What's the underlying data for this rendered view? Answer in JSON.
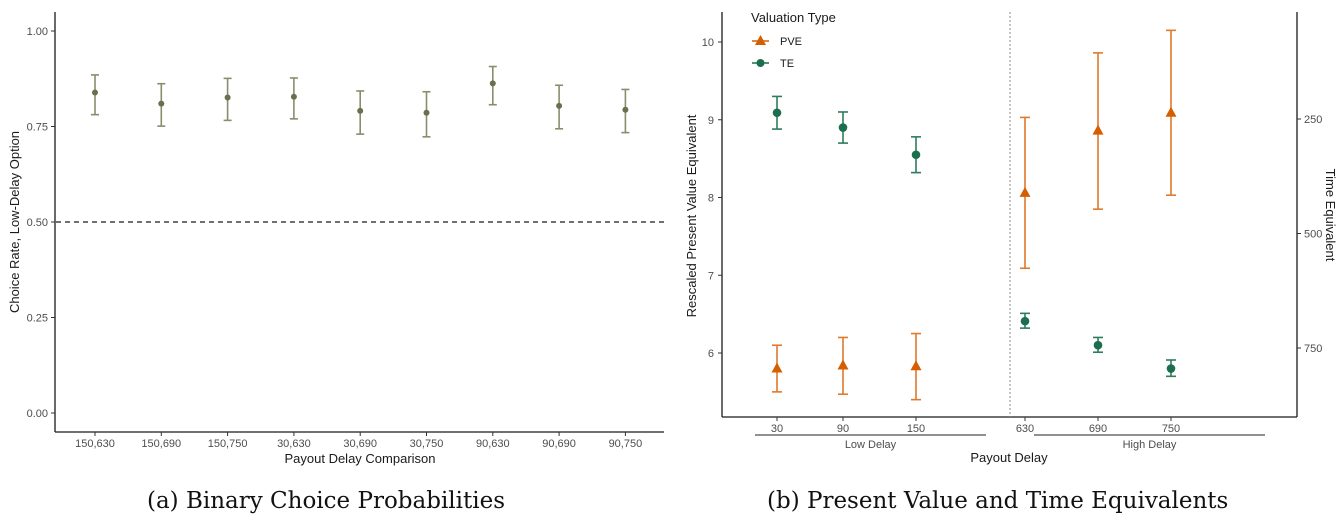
{
  "captions": {
    "a": "(a) Binary Choice Probabilities",
    "b": "(b) Present Value and Time Equivalents"
  },
  "chart_data": [
    {
      "type": "scatter",
      "title": "(a) Binary Choice Probabilities",
      "xlabel": "Payout Delay Comparison",
      "ylabel": "Choice Rate, Low-Delay Option",
      "ylim": [
        -0.05,
        1.05
      ],
      "yticks": [
        0.0,
        0.25,
        0.5,
        0.75,
        1.0
      ],
      "ytick_labels": [
        "0.00",
        "0.25",
        "0.50",
        "0.75",
        "1.00"
      ],
      "categories": [
        "150,630",
        "150,690",
        "150,750",
        "30,630",
        "30,690",
        "30,750",
        "90,630",
        "90,690",
        "90,750"
      ],
      "values": [
        0.839,
        0.81,
        0.826,
        0.828,
        0.791,
        0.786,
        0.863,
        0.804,
        0.794
      ],
      "lower": [
        0.781,
        0.751,
        0.766,
        0.77,
        0.73,
        0.723,
        0.807,
        0.744,
        0.734
      ],
      "upper": [
        0.885,
        0.862,
        0.876,
        0.877,
        0.843,
        0.841,
        0.907,
        0.858,
        0.847
      ],
      "reference_line": {
        "y": 0.5,
        "style": "dashed"
      },
      "color": "#6b6f4e",
      "grid": false
    },
    {
      "type": "scatter",
      "title": "(b) Present Value and Time Equivalents",
      "xlabel": "Payout Delay",
      "ylabel": "Rescaled Present Value Equivalent",
      "ylabel_right": "Time Equivalent",
      "ylim": [
        5.2,
        10.4
      ],
      "yticks": [
        6,
        7,
        8,
        9,
        10
      ],
      "ytick_labels": [
        "6",
        "7",
        "8",
        "9",
        "10"
      ],
      "right_axis": {
        "ticks": [
          250,
          500,
          750
        ],
        "tick_labels": [
          "250",
          "500",
          "750"
        ],
        "reversed": true
      },
      "categories": [
        "30",
        "90",
        "150",
        "630",
        "690",
        "750"
      ],
      "groups": [
        {
          "label": "Low Delay",
          "categories": [
            "30",
            "90",
            "150"
          ]
        },
        {
          "label": "High Delay",
          "categories": [
            "630",
            "690",
            "750"
          ]
        }
      ],
      "divider": {
        "between": [
          "150",
          "630"
        ],
        "style": "dotted"
      },
      "legend": {
        "title": "Valuation Type",
        "position": "top-left"
      },
      "series": [
        {
          "name": "PVE",
          "marker": "triangle",
          "color": "#d55e00",
          "values": [
            5.8,
            5.84,
            5.83,
            8.06,
            8.86,
            9.09
          ],
          "lower": [
            5.5,
            5.47,
            5.4,
            7.09,
            7.85,
            8.03
          ],
          "upper": [
            6.1,
            6.2,
            6.25,
            9.03,
            9.86,
            10.15
          ]
        },
        {
          "name": "TE",
          "marker": "circle",
          "color": "#1b6e4e",
          "values": [
            9.09,
            8.9,
            8.55,
            6.41,
            6.1,
            5.8
          ],
          "lower": [
            8.88,
            8.7,
            8.32,
            6.32,
            6.01,
            5.7
          ],
          "upper": [
            9.3,
            9.1,
            8.78,
            6.51,
            6.2,
            5.91
          ]
        }
      ],
      "grid": false
    }
  ]
}
